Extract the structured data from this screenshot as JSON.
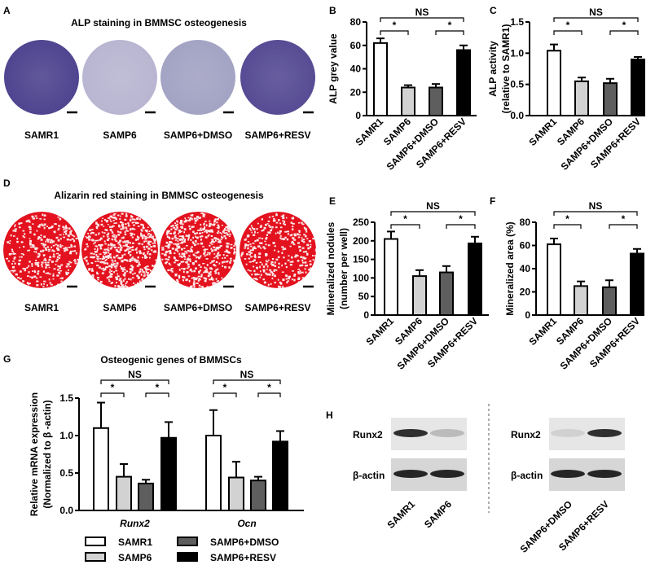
{
  "groups": [
    "SAMR1",
    "SAMP6",
    "SAMP6+DMSO",
    "SAMP6+RESV"
  ],
  "group_colors": [
    "#ffffff",
    "#d2d2d2",
    "#5e5e5e",
    "#000000"
  ],
  "panel_letters": {
    "A": "A",
    "B": "B",
    "C": "C",
    "D": "D",
    "E": "E",
    "F": "F",
    "G": "G",
    "H": "H"
  },
  "panel_A": {
    "title": "ALP staining in BMMSC osteogenesis",
    "labels": [
      "SAMR1",
      "SAMP6",
      "SAMP6+DMSO",
      "SAMP6+RESV"
    ],
    "well_colors": [
      "#4f4590",
      "#b9b6d2",
      "#a3a3c4",
      "#574c94"
    ]
  },
  "panel_D": {
    "title": "Alizarin red staining in BMMSC osteogenesis",
    "labels": [
      "SAMR1",
      "SAMP6",
      "SAMP6+DMSO",
      "SAMP6+RESV"
    ],
    "stain_color": "#e3121e",
    "white_fraction": [
      0.35,
      0.6,
      0.55,
      0.35
    ]
  },
  "chart_data": [
    {
      "id": "B",
      "type": "bar",
      "categories": [
        "SAMR1",
        "SAMP6",
        "SAMP6+DMSO",
        "SAMP6+RESV"
      ],
      "values": [
        62,
        24,
        24,
        56
      ],
      "errors": [
        4,
        2,
        3,
        4
      ],
      "ylabel_lines": [
        "ALP grey value"
      ],
      "ylim": [
        0,
        80
      ],
      "yticks": [
        "0",
        "20",
        "40",
        "60",
        "80"
      ],
      "comparisons": [
        {
          "from": 0,
          "to": 3,
          "label": "NS"
        },
        {
          "from": 0,
          "to": 1,
          "label": "*"
        },
        {
          "from": 2,
          "to": 3,
          "label": "*"
        }
      ]
    },
    {
      "id": "C",
      "type": "bar",
      "categories": [
        "SAMR1",
        "SAMP6",
        "SAMP6+DMSO",
        "SAMP6+RESV"
      ],
      "values": [
        1.04,
        0.55,
        0.52,
        0.9
      ],
      "errors": [
        0.1,
        0.06,
        0.07,
        0.04
      ],
      "ylabel_lines": [
        "ALP activity",
        "(relative to SAMR1)"
      ],
      "ylim": [
        0,
        1.5
      ],
      "yticks": [
        "0.0",
        "0.5",
        "1.0",
        "1.5"
      ],
      "comparisons": [
        {
          "from": 0,
          "to": 3,
          "label": "NS"
        },
        {
          "from": 0,
          "to": 1,
          "label": "*"
        },
        {
          "from": 2,
          "to": 3,
          "label": "*"
        }
      ]
    },
    {
      "id": "E",
      "type": "bar",
      "categories": [
        "SAMR1",
        "SAMP6",
        "SAMP6+DMSO",
        "SAMP6+RESV"
      ],
      "values": [
        205,
        105,
        115,
        193
      ],
      "errors": [
        20,
        16,
        17,
        18
      ],
      "ylabel_lines": [
        "Mineralized nodules",
        "(number per well)"
      ],
      "ylim": [
        0,
        250
      ],
      "yticks": [
        "0",
        "50",
        "100",
        "150",
        "200",
        "250"
      ],
      "comparisons": [
        {
          "from": 0,
          "to": 3,
          "label": "NS"
        },
        {
          "from": 0,
          "to": 1,
          "label": "*"
        },
        {
          "from": 2,
          "to": 3,
          "label": "*"
        }
      ]
    },
    {
      "id": "F",
      "type": "bar",
      "categories": [
        "SAMR1",
        "SAMP6",
        "SAMP6+DMSO",
        "SAMP6+RESV"
      ],
      "values": [
        61,
        25,
        24,
        53
      ],
      "errors": [
        5,
        4,
        6,
        4
      ],
      "ylabel_lines": [
        "Mineralized area (%)"
      ],
      "ylim": [
        0,
        80
      ],
      "yticks": [
        "0",
        "20",
        "40",
        "60",
        "80"
      ],
      "comparisons": [
        {
          "from": 0,
          "to": 3,
          "label": "NS"
        },
        {
          "from": 0,
          "to": 1,
          "label": "*"
        },
        {
          "from": 2,
          "to": 3,
          "label": "*"
        }
      ]
    },
    {
      "id": "G",
      "type": "bar",
      "title": "Osteogenic genes of BMMSCs",
      "categories": [
        "Runx2",
        "Ocn"
      ],
      "series": [
        {
          "name": "SAMR1",
          "values": [
            1.1,
            1.0
          ],
          "errors": [
            0.34,
            0.34
          ]
        },
        {
          "name": "SAMP6",
          "values": [
            0.45,
            0.44
          ],
          "errors": [
            0.17,
            0.21
          ]
        },
        {
          "name": "SAMP6+DMSO",
          "values": [
            0.36,
            0.4
          ],
          "errors": [
            0.05,
            0.05
          ]
        },
        {
          "name": "SAMP6+RESV",
          "values": [
            0.97,
            0.92
          ],
          "errors": [
            0.21,
            0.14
          ]
        }
      ],
      "ylabel_lines": [
        "Relative mRNA expression",
        "(Normalized to β -actin)"
      ],
      "ylim": [
        0,
        1.5
      ],
      "yticks": [
        "0.0",
        "0.5",
        "1.0",
        "1.5"
      ],
      "legend": "bottom",
      "comparisons": [
        {
          "from": 0,
          "to": 3,
          "label": "NS"
        },
        {
          "from": 0,
          "to": 1,
          "label": "*"
        },
        {
          "from": 2,
          "to": 3,
          "label": "*"
        }
      ]
    }
  ],
  "panel_H": {
    "rows": [
      "Runx2",
      "β-actin"
    ],
    "left_lanes": [
      "SAMR1",
      "SAMP6"
    ],
    "right_lanes": [
      "SAMP6+DMSO",
      "SAMP6+RESV"
    ],
    "runx2_intensity": [
      0.85,
      0.2,
      0.1,
      0.85
    ],
    "actin_intensity": [
      0.9,
      0.9,
      0.9,
      0.9
    ]
  }
}
